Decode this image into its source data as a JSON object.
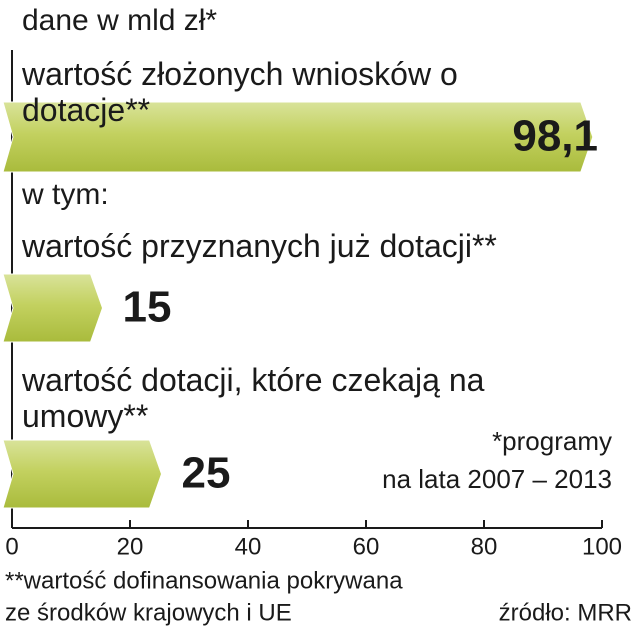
{
  "chart_data": {
    "type": "bar",
    "orientation": "horizontal",
    "subtitle": "dane w mld zł*",
    "subset_label": "w tym:",
    "categories": [
      "wartość złożonych wniosków o dotacje**",
      "wartość przyznanych już dotacji**",
      "wartość dotacji, które czekają na umowy**"
    ],
    "values": [
      98.1,
      15,
      25
    ],
    "value_labels": [
      "98,1",
      "15",
      "25"
    ],
    "color": "#b5c64a",
    "xlim": [
      0,
      100
    ],
    "xticks": [
      0,
      20,
      40,
      60,
      80,
      100
    ],
    "note": [
      "*programy",
      "na lata 2007 – 2013"
    ],
    "footnote": [
      "**wartość dofinansowania pokrywana",
      "ze środków krajowych i UE"
    ],
    "source": "źródło: MRR"
  }
}
